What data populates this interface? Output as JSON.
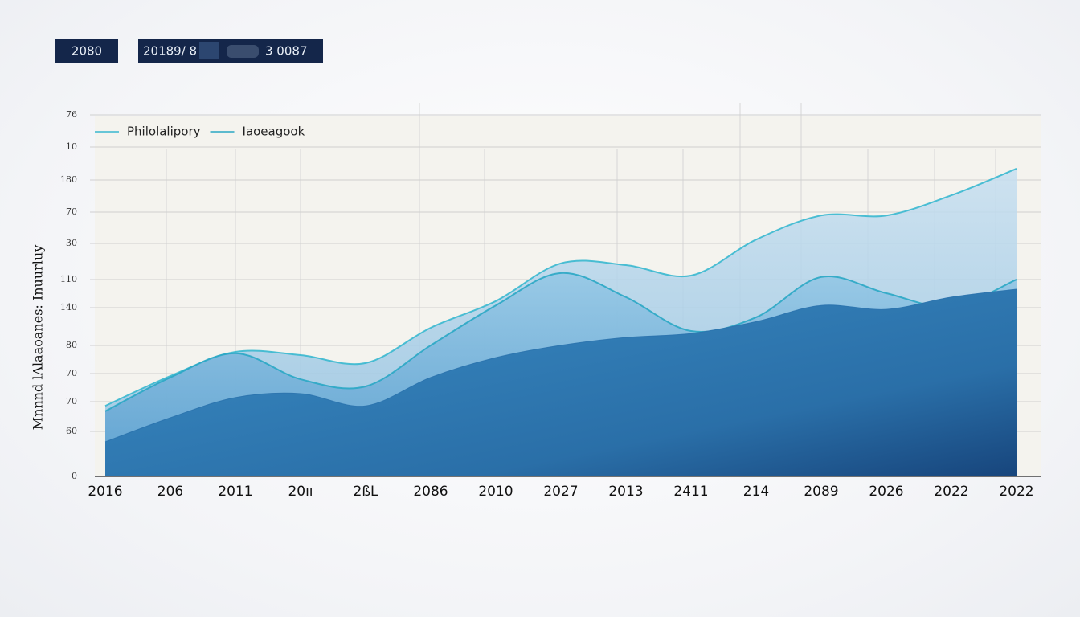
{
  "header": {
    "box_left": "2080",
    "box_right_a": "20189/ 8",
    "box_right_b": "3 0087"
  },
  "chart_data": {
    "type": "area",
    "y_label": "Mnnnd lAlaaoanes: Inuurluy",
    "y_axis_labels": [
      "76",
      "10",
      "180",
      "70",
      "30",
      "110",
      "140",
      "80",
      "70",
      "70",
      "60",
      "0"
    ],
    "categories": [
      "2016",
      "206",
      "2011",
      "20ıı",
      "2ßL",
      "2086",
      "2010",
      "2027",
      "2013",
      "2411",
      "214",
      "2089",
      "2026",
      "2022",
      "2022"
    ],
    "ylim": [
      0,
      100
    ],
    "series": [
      {
        "name": "Philolalipory",
        "color": "#38b8cf",
        "values": [
          19.6,
          27.9,
          34.6,
          33.7,
          31.5,
          41.3,
          48.7,
          59.2,
          58.7,
          55.8,
          65.8,
          72.5,
          72.5,
          78.1,
          85.5
        ]
      },
      {
        "name": "Iaoeagook",
        "color": "#2aa7c4",
        "values": [
          18.1,
          27.5,
          34.2,
          27.0,
          25.0,
          36.4,
          47.5,
          56.5,
          49.8,
          40.4,
          44.2,
          55.4,
          50.9,
          47.1,
          54.7
        ]
      },
      {
        "color": "#2a72ad",
        "values": [
          9.6,
          16.3,
          21.9,
          23.0,
          19.6,
          27.5,
          33.0,
          36.4,
          38.6,
          39.7,
          43.0,
          47.5,
          46.4,
          49.8,
          52.0
        ]
      }
    ]
  }
}
